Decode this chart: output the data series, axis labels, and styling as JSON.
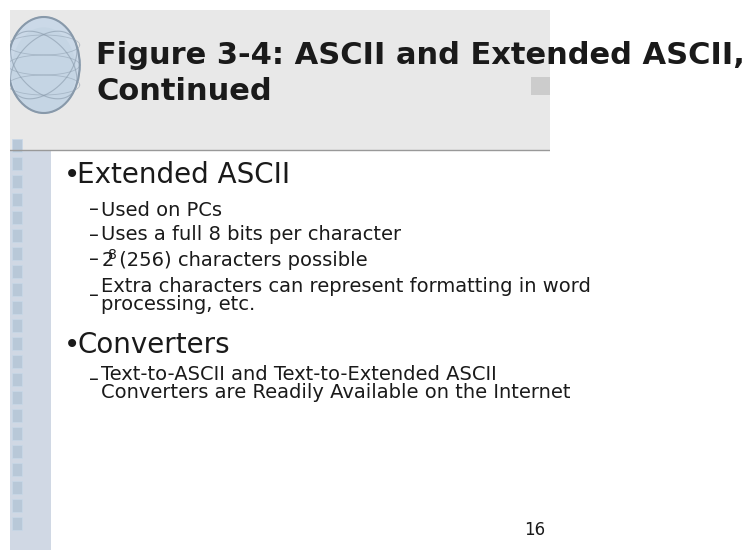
{
  "title_line1": "Figure 3-4: ASCII and Extended ASCII,",
  "title_line2": "Continued",
  "title_fontsize": 22,
  "title_color": "#1a1a1a",
  "title_bg_color": "#e8e8e8",
  "body_bg_color": "#ffffff",
  "left_panel_color": "#d0d8e4",
  "bullet1": "Extended ASCII",
  "bullet1_items": [
    "Used on PCs",
    "Uses a full 8 bits per character",
    "2⁸ (256) characters possible",
    "Extra characters can represent formatting in word\n        processing, etc."
  ],
  "bullet2": "Converters",
  "bullet2_items": [
    "Text-to-ASCII and Text-to-Extended ASCII\n        Converters are Readily Available on the Internet"
  ],
  "page_number": "16",
  "text_color": "#1a1a1a",
  "bullet_fontsize": 16,
  "sub_fontsize": 14
}
